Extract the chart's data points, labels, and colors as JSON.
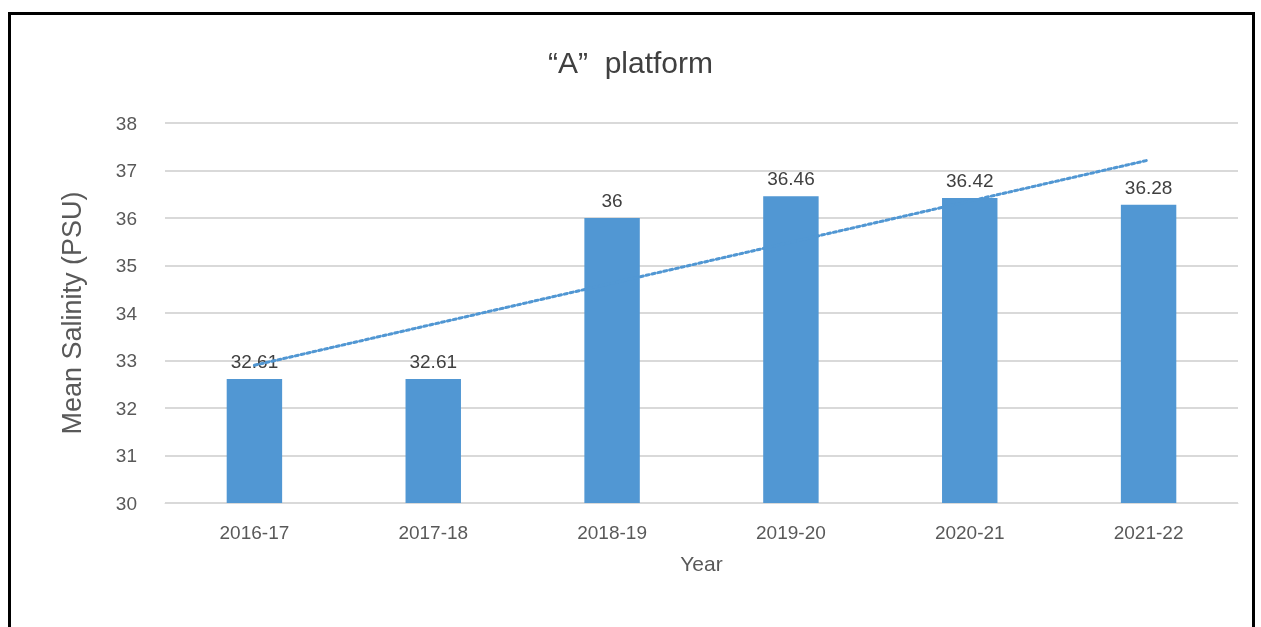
{
  "chart_data": {
    "type": "bar",
    "title": "“A”  platform",
    "xlabel": "Year",
    "ylabel": "Mean Salinity (PSU)",
    "categories": [
      "2016-17",
      "2017-18",
      "2018-19",
      "2019-20",
      "2020-21",
      "2021-22"
    ],
    "series": [
      {
        "color": "#5197d3",
        "values": [
          32.61,
          32.61,
          36,
          36.46,
          36.42,
          36.28
        ],
        "value_labels": [
          "32.61",
          "32.61",
          "36",
          "36.46",
          "36.42",
          "36.28"
        ]
      },
      {
        "type": "line",
        "color": "#5197d3",
        "x": [
          "2016-17",
          "2021-22"
        ],
        "values": [
          32.9,
          37.22
        ],
        "line_style": "dotted",
        "marker": "none"
      }
    ],
    "ylim": [
      30,
      38
    ],
    "yticks": [
      30,
      31,
      32,
      33,
      34,
      35,
      36,
      37,
      38
    ],
    "grid": "y"
  }
}
